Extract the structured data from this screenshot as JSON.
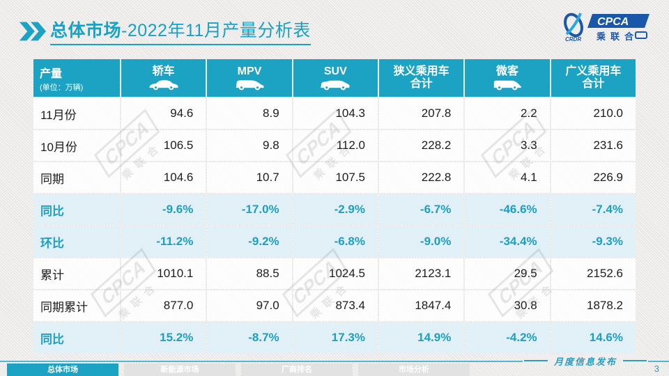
{
  "header": {
    "title_bold": "总体市场",
    "title_rest": "-2022年11月产量分析表",
    "logo": {
      "cpca": "CPCA",
      "sub": "乘联合",
      "crdr": "CRDR"
    }
  },
  "table": {
    "corner_title": "产量",
    "corner_unit": "(单位：万辆)",
    "columns": [
      {
        "lines": [
          "轿车"
        ],
        "icon": "sedan-icon"
      },
      {
        "lines": [
          "MPV"
        ],
        "icon": "mpv-icon"
      },
      {
        "lines": [
          "SUV"
        ],
        "icon": "suv-icon"
      },
      {
        "lines": [
          "狭义乘用车",
          "合计"
        ],
        "icon": null
      },
      {
        "lines": [
          "微客"
        ],
        "icon": "microvan-icon"
      },
      {
        "lines": [
          "广义乘用车",
          "合计"
        ],
        "icon": null
      }
    ],
    "rows": [
      {
        "label": "11月份",
        "type": "normal",
        "values": [
          "94.6",
          "8.9",
          "104.3",
          "207.8",
          "2.2",
          "210.0"
        ]
      },
      {
        "label": "10月份",
        "type": "normal",
        "values": [
          "106.5",
          "9.8",
          "112.0",
          "228.2",
          "3.3",
          "231.6"
        ]
      },
      {
        "label": "同期",
        "type": "normal",
        "values": [
          "104.6",
          "10.7",
          "107.5",
          "222.8",
          "4.1",
          "226.9"
        ]
      },
      {
        "label": "同比",
        "type": "percent",
        "values": [
          "-9.6%",
          "-17.0%",
          "-2.9%",
          "-6.7%",
          "-46.6%",
          "-7.4%"
        ]
      },
      {
        "label": "环比",
        "type": "percent",
        "values": [
          "-11.2%",
          "-9.2%",
          "-6.8%",
          "-9.0%",
          "-34.4%",
          "-9.3%"
        ]
      },
      {
        "label": "累计",
        "type": "normal",
        "values": [
          "1010.1",
          "88.5",
          "1024.5",
          "2123.1",
          "29.5",
          "2152.6"
        ]
      },
      {
        "label": "同期累计",
        "type": "normal",
        "values": [
          "877.0",
          "97.0",
          "873.4",
          "1847.4",
          "30.8",
          "1878.2"
        ]
      },
      {
        "label": "同比",
        "type": "percent",
        "values": [
          "15.2%",
          "-8.7%",
          "17.3%",
          "14.9%",
          "-4.2%",
          "14.6%"
        ]
      }
    ]
  },
  "footer": {
    "tabs": [
      {
        "label": "总体市场",
        "active": true
      },
      {
        "label": "新能源市场",
        "active": false
      },
      {
        "label": "厂商排名",
        "active": false
      },
      {
        "label": "市场分析",
        "active": false
      }
    ],
    "publication": "月度信息发布",
    "page_number": "3"
  },
  "watermark": {
    "box_text": "CPCA",
    "sub_text": "乘联合"
  },
  "colors": {
    "teal": "#1ca3c4",
    "title_teal": "#17a1c5",
    "percent_text": "#1d9fc4",
    "percent_row_bg": "#dfeff7",
    "logo_blue": "#1b57a8",
    "footer_line": "#56b6d0"
  }
}
